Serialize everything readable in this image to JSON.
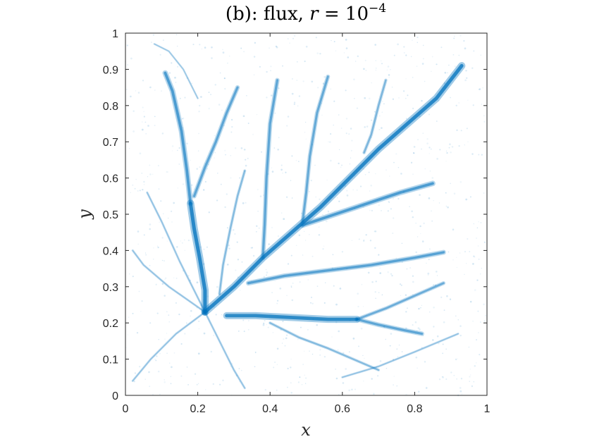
{
  "chart_data": {
    "type": "scatter",
    "title_parts": {
      "prefix": "(b): flux, ",
      "var": "r",
      "mid": " = 10",
      "exp": "−4"
    },
    "xlabel": "x",
    "ylabel": "y",
    "xlim": [
      0,
      1
    ],
    "ylim": [
      0,
      1
    ],
    "xticks": [
      "0",
      "0.2",
      "0.4",
      "0.6",
      "0.8",
      "1"
    ],
    "yticks": [
      "0",
      "0.1",
      "0.2",
      "0.3",
      "0.4",
      "0.5",
      "0.6",
      "0.7",
      "0.8",
      "0.9",
      "1"
    ],
    "grid": false,
    "colors": {
      "flux": "#0072BD",
      "axis": "#262626"
    },
    "source": [
      0.22,
      0.23
    ],
    "series": [
      {
        "points": [
          [
            0.22,
            0.23
          ],
          [
            0.22,
            0.29
          ],
          [
            0.205,
            0.38
          ],
          [
            0.19,
            0.46
          ],
          [
            0.18,
            0.53
          ]
        ],
        "weight": 1.0
      },
      {
        "points": [
          [
            0.18,
            0.53
          ],
          [
            0.17,
            0.62
          ],
          [
            0.155,
            0.73
          ],
          [
            0.13,
            0.84
          ],
          [
            0.11,
            0.89
          ]
        ],
        "weight": 0.7
      },
      {
        "points": [
          [
            0.19,
            0.55
          ],
          [
            0.22,
            0.63
          ],
          [
            0.25,
            0.7
          ],
          [
            0.28,
            0.78
          ],
          [
            0.31,
            0.85
          ]
        ],
        "weight": 0.55
      },
      {
        "points": [
          [
            0.22,
            0.23
          ],
          [
            0.3,
            0.3
          ],
          [
            0.38,
            0.38
          ],
          [
            0.46,
            0.45
          ],
          [
            0.54,
            0.52
          ],
          [
            0.62,
            0.6
          ],
          [
            0.7,
            0.68
          ],
          [
            0.78,
            0.75
          ],
          [
            0.86,
            0.82
          ],
          [
            0.93,
            0.91
          ]
        ],
        "weight": 1.0
      },
      {
        "points": [
          [
            0.28,
            0.22
          ],
          [
            0.36,
            0.22
          ],
          [
            0.46,
            0.215
          ],
          [
            0.56,
            0.21
          ],
          [
            0.64,
            0.21
          ]
        ],
        "weight": 0.95
      },
      {
        "points": [
          [
            0.64,
            0.21
          ],
          [
            0.72,
            0.24
          ],
          [
            0.8,
            0.275
          ],
          [
            0.88,
            0.31
          ]
        ],
        "weight": 0.45
      },
      {
        "points": [
          [
            0.64,
            0.21
          ],
          [
            0.7,
            0.195
          ],
          [
            0.77,
            0.18
          ],
          [
            0.82,
            0.17
          ]
        ],
        "weight": 0.55
      },
      {
        "points": [
          [
            0.34,
            0.31
          ],
          [
            0.44,
            0.33
          ],
          [
            0.56,
            0.345
          ],
          [
            0.68,
            0.36
          ],
          [
            0.8,
            0.38
          ],
          [
            0.88,
            0.395
          ]
        ],
        "weight": 0.6
      },
      {
        "points": [
          [
            0.49,
            0.47
          ],
          [
            0.58,
            0.5
          ],
          [
            0.67,
            0.53
          ],
          [
            0.76,
            0.56
          ],
          [
            0.85,
            0.585
          ]
        ],
        "weight": 0.7
      },
      {
        "points": [
          [
            0.38,
            0.38
          ],
          [
            0.385,
            0.47
          ],
          [
            0.39,
            0.6
          ],
          [
            0.4,
            0.75
          ],
          [
            0.42,
            0.87
          ]
        ],
        "weight": 0.55
      },
      {
        "points": [
          [
            0.49,
            0.48
          ],
          [
            0.5,
            0.56
          ],
          [
            0.51,
            0.66
          ],
          [
            0.53,
            0.78
          ],
          [
            0.56,
            0.88
          ]
        ],
        "weight": 0.5
      },
      {
        "points": [
          [
            0.66,
            0.67
          ],
          [
            0.68,
            0.72
          ],
          [
            0.7,
            0.8
          ],
          [
            0.72,
            0.87
          ]
        ],
        "weight": 0.35
      },
      {
        "points": [
          [
            0.26,
            0.28
          ],
          [
            0.27,
            0.36
          ],
          [
            0.29,
            0.46
          ],
          [
            0.31,
            0.55
          ],
          [
            0.33,
            0.62
          ]
        ],
        "weight": 0.3
      },
      {
        "points": [
          [
            0.4,
            0.2
          ],
          [
            0.48,
            0.16
          ],
          [
            0.56,
            0.13
          ],
          [
            0.63,
            0.1
          ],
          [
            0.7,
            0.07
          ]
        ],
        "weight": 0.3
      },
      {
        "points": [
          [
            0.22,
            0.23
          ],
          [
            0.12,
            0.3
          ],
          [
            0.05,
            0.36
          ],
          [
            0.02,
            0.4
          ]
        ],
        "weight": 0.2
      },
      {
        "points": [
          [
            0.22,
            0.23
          ],
          [
            0.14,
            0.17
          ],
          [
            0.07,
            0.1
          ],
          [
            0.02,
            0.04
          ]
        ],
        "weight": 0.2
      },
      {
        "points": [
          [
            0.22,
            0.23
          ],
          [
            0.26,
            0.15
          ],
          [
            0.3,
            0.07
          ],
          [
            0.33,
            0.02
          ]
        ],
        "weight": 0.2
      },
      {
        "points": [
          [
            0.22,
            0.23
          ],
          [
            0.15,
            0.37
          ],
          [
            0.1,
            0.48
          ],
          [
            0.06,
            0.56
          ]
        ],
        "weight": 0.2
      },
      {
        "points": [
          [
            0.2,
            0.82
          ],
          [
            0.16,
            0.9
          ],
          [
            0.12,
            0.95
          ],
          [
            0.08,
            0.97
          ]
        ],
        "weight": 0.15
      },
      {
        "points": [
          [
            0.6,
            0.05
          ],
          [
            0.7,
            0.08
          ],
          [
            0.8,
            0.12
          ],
          [
            0.92,
            0.17
          ]
        ],
        "weight": 0.2
      }
    ]
  }
}
